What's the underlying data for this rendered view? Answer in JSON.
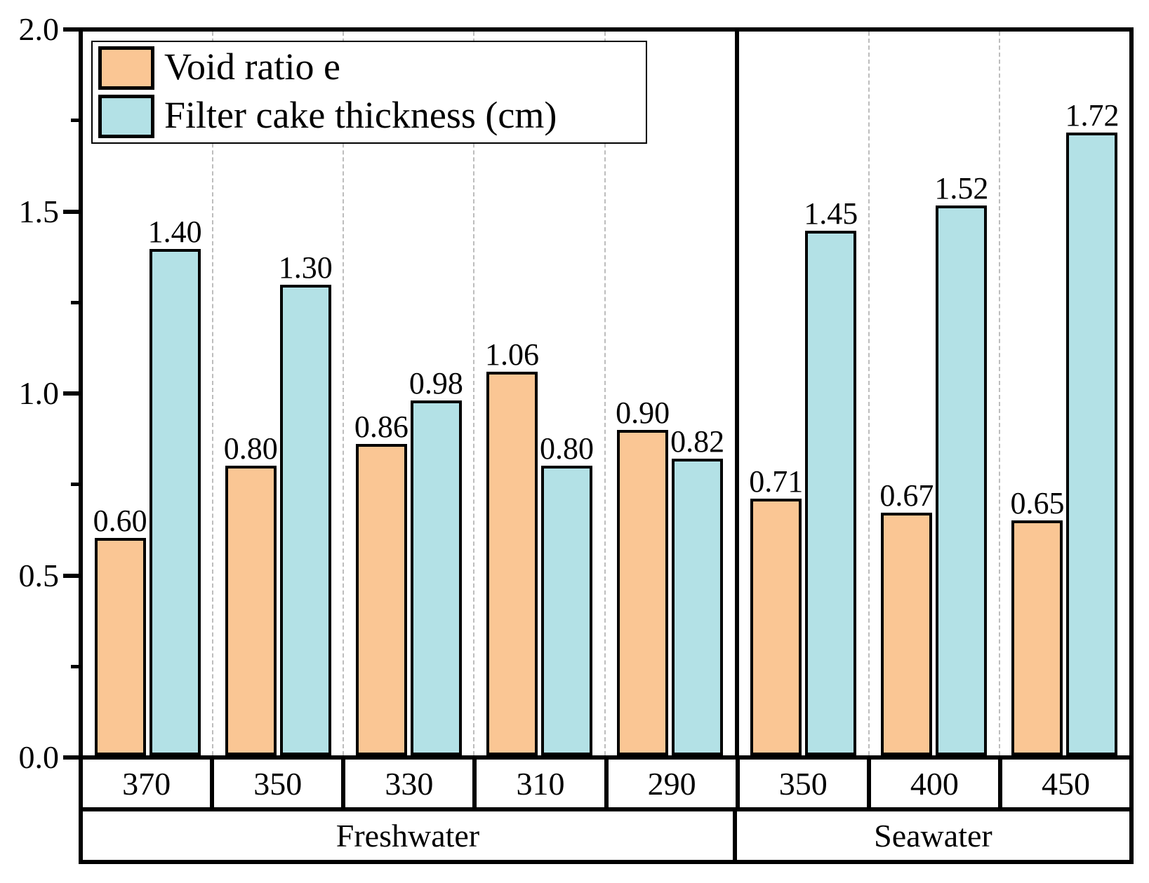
{
  "chart_data": {
    "type": "bar",
    "title": "",
    "ylim": [
      0,
      2.0
    ],
    "y_axis": {
      "major_ticks": [
        {
          "value": 2.0,
          "label": "2.0"
        },
        {
          "value": 1.5,
          "label": "1.5"
        },
        {
          "value": 1.0,
          "label": "1.0"
        },
        {
          "value": 0.5,
          "label": "0.5"
        },
        {
          "value": 0.0,
          "label": "0.0"
        }
      ],
      "minor_ticks": [
        1.75,
        1.25,
        0.75,
        0.25
      ]
    },
    "groups": [
      {
        "label": "Freshwater",
        "span": 5
      },
      {
        "label": "Seawater",
        "span": 3
      }
    ],
    "categories": [
      "370",
      "350",
      "330",
      "310",
      "290",
      "350",
      "400",
      "450"
    ],
    "series": [
      {
        "name": "Void ratio e",
        "color": "#FAC694",
        "values": [
          0.6,
          0.8,
          0.86,
          1.06,
          0.9,
          0.71,
          0.67,
          0.65
        ],
        "labels": [
          "0.60",
          "0.80",
          "0.86",
          "1.06",
          "0.90",
          "0.71",
          "0.67",
          "0.65"
        ]
      },
      {
        "name": "Filter cake thickness (cm)",
        "color": "#B3E1E6",
        "values": [
          1.4,
          1.3,
          0.98,
          0.8,
          0.82,
          1.45,
          1.52,
          1.72
        ],
        "labels": [
          "1.40",
          "1.30",
          "0.98",
          "0.80",
          "0.82",
          "1.45",
          "1.52",
          "1.72"
        ]
      }
    ],
    "grid": {
      "style": "vertical-dashed-at-category-boundaries",
      "color": "#bdbdbd"
    },
    "legend": {
      "position": "top-left",
      "border": true
    },
    "colors": {
      "frame": "#000000",
      "bar_border": "#000000",
      "background": "#ffffff"
    }
  }
}
